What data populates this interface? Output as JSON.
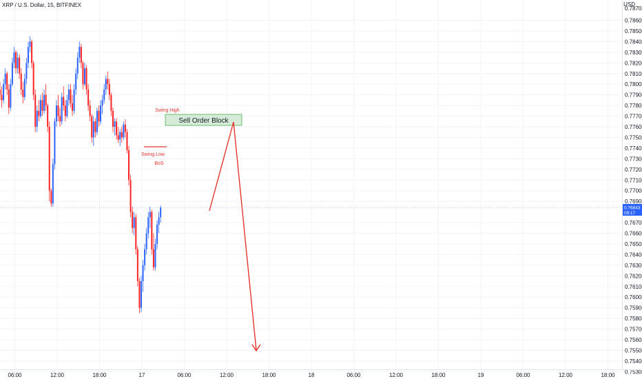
{
  "header": {
    "title": "XRP / U.S. Dollar, 15, BITFINEX"
  },
  "price_scale": {
    "unit": "USD",
    "current_price": "0.76843",
    "countdown": "09:17"
  },
  "colors": {
    "up": "#2962ff",
    "down": "#ff2222",
    "grid": "#f1f3f6",
    "annotation": "#e5342d",
    "order_block_fill": "#d6ecd9",
    "order_block_border": "#4caf50",
    "price_tag": "#2962ff"
  },
  "annotations": {
    "swing_high": "Swing High",
    "swing_low": "Swing Low",
    "bos": "BoS",
    "order_block": "Sell Order Block"
  },
  "chart_data": {
    "type": "candlestick",
    "title": "XRP / U.S. Dollar, 15, BITFINEX",
    "ylabel": "USD",
    "ylim": [
      0.753,
      0.787
    ],
    "y_ticks": [
      "0.78600",
      "0.78500",
      "0.78400",
      "0.78300",
      "0.78200",
      "0.78100",
      "0.78000",
      "0.77900",
      "0.77800",
      "0.77700",
      "0.77600",
      "0.77500",
      "0.77400",
      "0.77300",
      "0.77200",
      "0.77100",
      "0.77000",
      "0.76900",
      "0.76700",
      "0.76600",
      "0.76500",
      "0.76400",
      "0.76300",
      "0.76200",
      "0.76100",
      "0.76000",
      "0.75900",
      "0.75800",
      "0.75700",
      "0.75600",
      "0.75500",
      "0.75400",
      "0.75300"
    ],
    "y_top_partial": "0.78700",
    "x_ticks": [
      {
        "label": "06:00",
        "t": -18
      },
      {
        "label": "12:00",
        "t": -12
      },
      {
        "label": "18:00",
        "t": -6
      },
      {
        "label": "17",
        "t": 0
      },
      {
        "label": "06:00",
        "t": 6
      },
      {
        "label": "12:00",
        "t": 12
      },
      {
        "label": "18:00",
        "t": 18
      },
      {
        "label": "18",
        "t": 24
      },
      {
        "label": "06:00",
        "t": 30
      },
      {
        "label": "12:00",
        "t": 36
      },
      {
        "label": "18:00",
        "t": 42
      },
      {
        "label": "19",
        "t": 48
      },
      {
        "label": "06:00",
        "t": 54
      },
      {
        "label": "12:00",
        "t": 60
      },
      {
        "label": "18:00",
        "t": 66
      }
    ],
    "ohlc_t0": -20.6,
    "ohlc_step": 0.25,
    "ohlc": [
      [
        0.7785,
        0.7792,
        0.777,
        0.778
      ],
      [
        0.778,
        0.78,
        0.7775,
        0.7795
      ],
      [
        0.7795,
        0.7802,
        0.7785,
        0.779
      ],
      [
        0.779,
        0.7798,
        0.7778,
        0.7785
      ],
      [
        0.7785,
        0.7805,
        0.7782,
        0.78
      ],
      [
        0.78,
        0.7815,
        0.7795,
        0.781
      ],
      [
        0.781,
        0.7812,
        0.779,
        0.7795
      ],
      [
        0.7795,
        0.78,
        0.7772,
        0.7778
      ],
      [
        0.7778,
        0.7805,
        0.7775,
        0.78
      ],
      [
        0.78,
        0.7825,
        0.7798,
        0.782
      ],
      [
        0.782,
        0.7835,
        0.7815,
        0.783
      ],
      [
        0.783,
        0.7832,
        0.781,
        0.7815
      ],
      [
        0.7815,
        0.783,
        0.781,
        0.7825
      ],
      [
        0.7825,
        0.7828,
        0.7805,
        0.781
      ],
      [
        0.781,
        0.7815,
        0.779,
        0.7795
      ],
      [
        0.7795,
        0.7802,
        0.7782,
        0.7788
      ],
      [
        0.7788,
        0.781,
        0.7785,
        0.7805
      ],
      [
        0.7805,
        0.7825,
        0.78,
        0.782
      ],
      [
        0.782,
        0.784,
        0.7815,
        0.7835
      ],
      [
        0.7835,
        0.7845,
        0.783,
        0.784
      ],
      [
        0.784,
        0.7842,
        0.7815,
        0.782
      ],
      [
        0.782,
        0.7822,
        0.7785,
        0.779
      ],
      [
        0.779,
        0.7795,
        0.7755,
        0.776
      ],
      [
        0.776,
        0.778,
        0.7755,
        0.7775
      ],
      [
        0.7775,
        0.7785,
        0.7765,
        0.777
      ],
      [
        0.777,
        0.779,
        0.7768,
        0.7785
      ],
      [
        0.7785,
        0.7792,
        0.777,
        0.7775
      ],
      [
        0.7775,
        0.7795,
        0.7772,
        0.779
      ],
      [
        0.779,
        0.78,
        0.7775,
        0.778
      ],
      [
        0.778,
        0.7782,
        0.7755,
        0.776
      ],
      [
        0.776,
        0.7765,
        0.769,
        0.77
      ],
      [
        0.77,
        0.7702,
        0.7685,
        0.7688
      ],
      [
        0.7688,
        0.773,
        0.7685,
        0.7725
      ],
      [
        0.7725,
        0.7768,
        0.772,
        0.7765
      ],
      [
        0.7765,
        0.7785,
        0.776,
        0.778
      ],
      [
        0.778,
        0.779,
        0.7765,
        0.777
      ],
      [
        0.777,
        0.7778,
        0.776,
        0.7765
      ],
      [
        0.7765,
        0.7792,
        0.7762,
        0.7788
      ],
      [
        0.7788,
        0.7798,
        0.7775,
        0.778
      ],
      [
        0.778,
        0.7785,
        0.7765,
        0.777
      ],
      [
        0.777,
        0.779,
        0.7768,
        0.7785
      ],
      [
        0.7785,
        0.78,
        0.778,
        0.7795
      ],
      [
        0.7795,
        0.78,
        0.7778,
        0.7782
      ],
      [
        0.7782,
        0.779,
        0.777,
        0.7775
      ],
      [
        0.7775,
        0.78,
        0.7772,
        0.7795
      ],
      [
        0.7795,
        0.7815,
        0.779,
        0.781
      ],
      [
        0.781,
        0.783,
        0.7805,
        0.7825
      ],
      [
        0.7825,
        0.784,
        0.782,
        0.7835
      ],
      [
        0.7835,
        0.7838,
        0.7815,
        0.782
      ],
      [
        0.782,
        0.7822,
        0.7795,
        0.78
      ],
      [
        0.78,
        0.782,
        0.7798,
        0.7815
      ],
      [
        0.7815,
        0.7818,
        0.779,
        0.7795
      ],
      [
        0.7795,
        0.78,
        0.7775,
        0.778
      ],
      [
        0.778,
        0.7785,
        0.7765,
        0.777
      ],
      [
        0.777,
        0.7772,
        0.7745,
        0.775
      ],
      [
        0.775,
        0.777,
        0.7742,
        0.7765
      ],
      [
        0.7765,
        0.7768,
        0.775,
        0.7755
      ],
      [
        0.7755,
        0.7778,
        0.7752,
        0.7775
      ],
      [
        0.7775,
        0.778,
        0.776,
        0.7765
      ],
      [
        0.7765,
        0.7785,
        0.7762,
        0.778
      ],
      [
        0.778,
        0.779,
        0.7772,
        0.7785
      ],
      [
        0.7785,
        0.78,
        0.7782,
        0.7795
      ],
      [
        0.7795,
        0.7808,
        0.779,
        0.7805
      ],
      [
        0.7805,
        0.7812,
        0.7795,
        0.78
      ],
      [
        0.78,
        0.7805,
        0.7785,
        0.779
      ],
      [
        0.779,
        0.7792,
        0.777,
        0.7775
      ],
      [
        0.7775,
        0.7778,
        0.7755,
        0.776
      ],
      [
        0.776,
        0.7768,
        0.7752,
        0.7765
      ],
      [
        0.7765,
        0.7768,
        0.7748,
        0.7752
      ],
      [
        0.7752,
        0.776,
        0.7745,
        0.7748
      ],
      [
        0.7748,
        0.7758,
        0.7742,
        0.7755
      ],
      [
        0.7755,
        0.776,
        0.7745,
        0.775
      ],
      [
        0.775,
        0.7765,
        0.7748,
        0.7762
      ],
      [
        0.7762,
        0.7767,
        0.775,
        0.7755
      ],
      [
        0.7755,
        0.7758,
        0.7735,
        0.7738
      ],
      [
        0.7738,
        0.7742,
        0.7705,
        0.771
      ],
      [
        0.771,
        0.7715,
        0.7675,
        0.768
      ],
      [
        0.768,
        0.7685,
        0.766,
        0.7665
      ],
      [
        0.7665,
        0.768,
        0.7658,
        0.7675
      ],
      [
        0.7675,
        0.7678,
        0.764,
        0.7645
      ],
      [
        0.7645,
        0.7648,
        0.761,
        0.7615
      ],
      [
        0.7615,
        0.7618,
        0.7585,
        0.759
      ],
      [
        0.759,
        0.762,
        0.7586,
        0.7615
      ],
      [
        0.7615,
        0.7635,
        0.7605,
        0.763
      ],
      [
        0.763,
        0.765,
        0.7625,
        0.7645
      ],
      [
        0.7645,
        0.7665,
        0.764,
        0.766
      ],
      [
        0.766,
        0.768,
        0.7655,
        0.7675
      ],
      [
        0.7675,
        0.7685,
        0.7665,
        0.768
      ],
      [
        0.768,
        0.7682,
        0.764,
        0.7645
      ],
      [
        0.7645,
        0.766,
        0.7625,
        0.7628
      ],
      [
        0.7628,
        0.7655,
        0.7625,
        0.765
      ],
      [
        0.765,
        0.7672,
        0.7645,
        0.7668
      ],
      [
        0.7668,
        0.768,
        0.766,
        0.7675
      ],
      [
        0.7675,
        0.7686,
        0.767,
        0.7684
      ]
    ]
  }
}
